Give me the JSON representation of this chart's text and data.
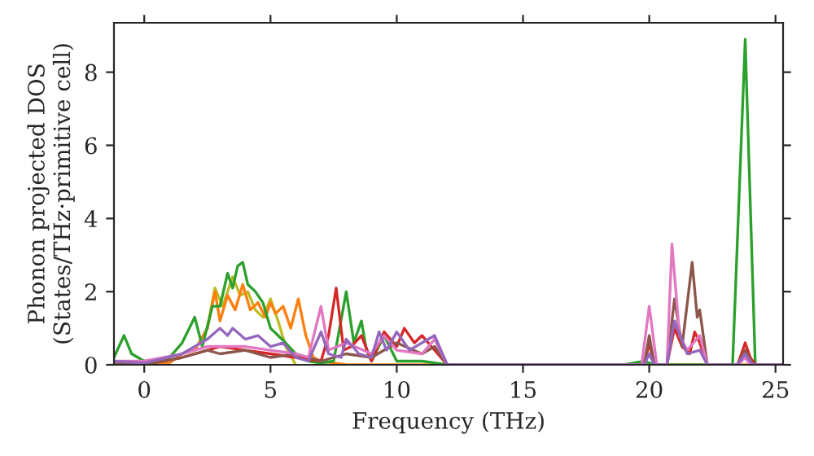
{
  "chart_data": {
    "type": "line",
    "xlabel": "Frequency (THz)",
    "ylabel": "Phonon projected DOS\n(States/THz·primitive cell)",
    "xlim": [
      -1.2,
      25.3
    ],
    "ylim": [
      0,
      9.35
    ],
    "xticks": [
      0,
      5,
      10,
      15,
      20,
      25
    ],
    "yticks": [
      0,
      2,
      4,
      6,
      8
    ],
    "grid": false,
    "legend": false,
    "series": [
      {
        "color": "#bcbd22",
        "x": [
          2.5,
          2.8,
          3.1,
          3.5,
          3.8,
          4.1,
          4.4,
          4.7,
          5.0,
          5.3,
          5.6,
          6.0
        ],
        "values": [
          1.0,
          2.1,
          1.6,
          2.4,
          1.9,
          2.0,
          1.5,
          1.3,
          1.8,
          1.2,
          0.5,
          0
        ]
      },
      {
        "color": "#ff7f0e",
        "x": [
          -1.2,
          0,
          1,
          1.5,
          2,
          2.5,
          2.8,
          3.0,
          3.3,
          3.6,
          3.9,
          4.2,
          4.5,
          4.8,
          5.0,
          5.2,
          5.5,
          5.8,
          6.1,
          6.4,
          6.7,
          7.0,
          8.0,
          12,
          25.3
        ],
        "values": [
          0.1,
          0,
          0.05,
          0.3,
          0.4,
          1.0,
          2.0,
          1.2,
          1.9,
          1.5,
          2.2,
          1.5,
          1.7,
          1.3,
          1.7,
          1.4,
          1.6,
          1.0,
          1.8,
          0.8,
          0.2,
          0.1,
          0,
          0,
          0
        ]
      },
      {
        "color": "#2ca02c",
        "x": [
          -1.2,
          -0.8,
          -0.5,
          0,
          0.5,
          1,
          1.5,
          2,
          2.3,
          2.7,
          3.0,
          3.3,
          3.5,
          3.7,
          3.9,
          4.1,
          4.4,
          4.7,
          5.0,
          5.3,
          5.6,
          6.0,
          6.5,
          7.0,
          7.5,
          8.0,
          8.3,
          8.6,
          8.8,
          9.0,
          9.5,
          10,
          11,
          12,
          19,
          19.8,
          20.2,
          23.3,
          23.8,
          24.2,
          25.3
        ],
        "values": [
          0.2,
          0.8,
          0.3,
          0.1,
          0.1,
          0.2,
          0.6,
          1.3,
          0.5,
          1.6,
          1.6,
          2.5,
          2.1,
          2.7,
          2.8,
          2.2,
          2.0,
          1.7,
          1.0,
          0.8,
          0.6,
          0.3,
          0.1,
          0.05,
          0.1,
          2.0,
          0.6,
          1.2,
          0.4,
          0.1,
          0.8,
          0.1,
          0.1,
          0,
          0,
          0.1,
          0,
          0,
          8.9,
          0,
          0
        ]
      },
      {
        "color": "#d62728",
        "x": [
          -1.2,
          0,
          1.5,
          2.5,
          3,
          4,
          5,
          6,
          7,
          7.3,
          7.6,
          7.9,
          8.2,
          8.6,
          9,
          9.5,
          10,
          10.3,
          10.7,
          11,
          11.5,
          12,
          19.8,
          20,
          20.2,
          20.7,
          21,
          21.3,
          21.6,
          21.8,
          22,
          22.3,
          23.5,
          23.8,
          24,
          24.2,
          25.3
        ],
        "values": [
          0.05,
          0,
          0.2,
          0.4,
          0.5,
          0.4,
          0.3,
          0.2,
          0.1,
          0.8,
          2.1,
          0.4,
          0.5,
          0.8,
          0.1,
          0.9,
          0.5,
          1.0,
          0.6,
          0.8,
          0.4,
          0,
          0,
          0.6,
          0,
          0,
          1.0,
          0.5,
          0.3,
          0.9,
          0.6,
          0,
          0,
          0.6,
          0.2,
          0,
          0
        ]
      },
      {
        "color": "#8c564b",
        "x": [
          -1.2,
          0,
          1.5,
          2.5,
          3,
          4,
          5,
          6,
          7,
          8,
          9,
          10,
          11,
          11.5,
          12,
          19.8,
          20,
          20.2,
          20.7,
          21,
          21.3,
          21.7,
          21.9,
          22,
          22.3,
          23.5,
          23.8,
          24.1,
          25.3
        ],
        "values": [
          0.05,
          0,
          0.2,
          0.4,
          0.3,
          0.4,
          0.2,
          0.3,
          0.1,
          0.3,
          0.2,
          0.6,
          0.3,
          0.5,
          0,
          0,
          0.8,
          0,
          0,
          1.8,
          0.5,
          2.8,
          1.3,
          1.5,
          0,
          0,
          0.4,
          0,
          0
        ]
      },
      {
        "color": "#e377c2",
        "x": [
          -1.2,
          0,
          1.5,
          2.5,
          3,
          4,
          5,
          6,
          6.5,
          7,
          7.3,
          8,
          9,
          9.5,
          10,
          11,
          11.5,
          12,
          19.7,
          20,
          20.3,
          20.7,
          20.9,
          21.2,
          21.5,
          22,
          22.3,
          23.5,
          23.8,
          24,
          25.3
        ],
        "values": [
          0.1,
          0.1,
          0.3,
          0.5,
          0.5,
          0.5,
          0.4,
          0.3,
          0.2,
          1.6,
          0.4,
          0.6,
          0.3,
          0.8,
          0.4,
          0.3,
          0.7,
          0,
          0,
          1.6,
          0,
          0,
          3.3,
          0.8,
          0.4,
          0.8,
          0,
          0,
          0.2,
          0,
          0
        ]
      },
      {
        "color": "#9467bd",
        "x": [
          -1.2,
          0,
          1.5,
          2.5,
          3,
          3.3,
          3.5,
          4,
          4.5,
          5,
          5.5,
          6,
          6.5,
          7,
          7.3,
          7.8,
          8,
          8.5,
          9,
          9.3,
          9.6,
          10,
          10.5,
          11,
          11.5,
          12,
          19.8,
          20,
          20.2,
          20.7,
          21,
          21.5,
          22,
          22.3,
          23.5,
          23.8,
          24.1,
          25.3
        ],
        "values": [
          0.1,
          0.05,
          0.3,
          0.7,
          1.0,
          0.8,
          1.0,
          0.7,
          0.8,
          0.5,
          0.6,
          0.2,
          0.1,
          0.9,
          0.3,
          0.2,
          0.7,
          0.3,
          0.2,
          0.9,
          0.4,
          0.9,
          0.4,
          0.6,
          0.8,
          0,
          0,
          0.3,
          0,
          0,
          1.2,
          0.3,
          0.4,
          0,
          0,
          0.3,
          0,
          0
        ]
      }
    ]
  }
}
